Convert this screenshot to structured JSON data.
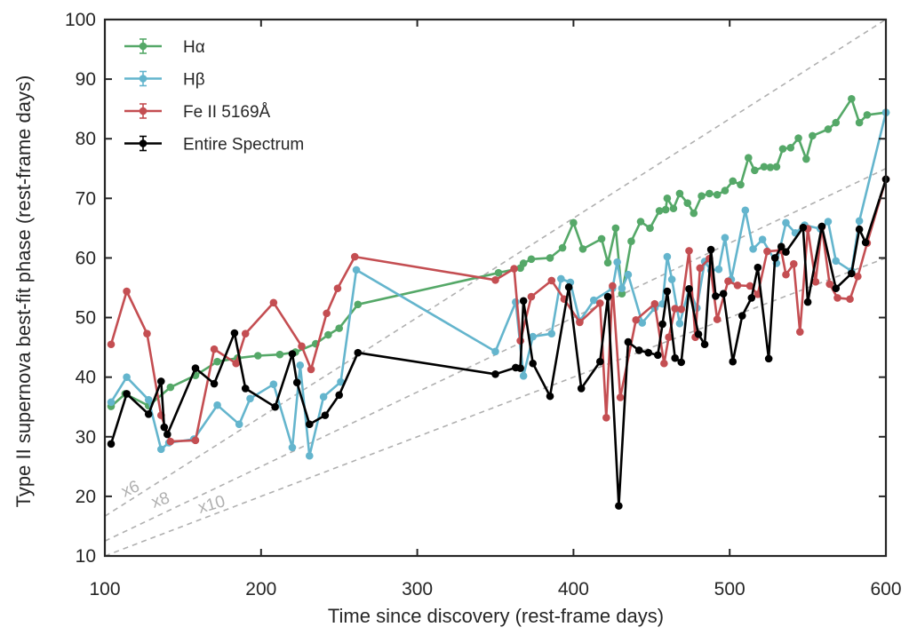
{
  "chart_data": {
    "type": "line",
    "xlabel": "Time since discovery (rest-frame days)",
    "ylabel": "Type II supernova best-fit phase (rest-frame days)",
    "xlim": [
      100,
      600
    ],
    "ylim": [
      10,
      100
    ],
    "xticks": [
      100,
      200,
      300,
      400,
      500,
      600
    ],
    "yticks": [
      10,
      20,
      30,
      40,
      50,
      60,
      70,
      80,
      90,
      100
    ],
    "grid": false,
    "legend_position": "top-left",
    "guide_lines": [
      {
        "label": "x6",
        "slope": 0.1667,
        "intercept": 0,
        "color": "#b0b0b0",
        "style": "dashed"
      },
      {
        "label": "x8",
        "slope": 0.125,
        "intercept": 0,
        "color": "#b0b0b0",
        "style": "dashed"
      },
      {
        "label": "x10",
        "slope": 0.1,
        "intercept": 0,
        "color": "#b0b0b0",
        "style": "dashed"
      }
    ],
    "series": [
      {
        "name": "Hα",
        "color": "#55a868",
        "points": [
          [
            104,
            35.1
          ],
          [
            113,
            37.2
          ],
          [
            128,
            35.2
          ],
          [
            142,
            38.3
          ],
          [
            158,
            40.3
          ],
          [
            172,
            42.6
          ],
          [
            185,
            43.2
          ],
          [
            198,
            43.6
          ],
          [
            212,
            43.8
          ],
          [
            222,
            44.2
          ],
          [
            235,
            45.6
          ],
          [
            243,
            47.1
          ],
          [
            250,
            48.2
          ],
          [
            262,
            52.2
          ],
          [
            352,
            57.5
          ],
          [
            366,
            58.3
          ],
          [
            368,
            59.1
          ],
          [
            373,
            59.8
          ],
          [
            385,
            60.0
          ],
          [
            393,
            61.7
          ],
          [
            400,
            65.9
          ],
          [
            406,
            61.5
          ],
          [
            418,
            63.2
          ],
          [
            422,
            59.2
          ],
          [
            427,
            65.0
          ],
          [
            431,
            54.0
          ],
          [
            437,
            62.8
          ],
          [
            443,
            66.1
          ],
          [
            449,
            65.0
          ],
          [
            455,
            67.9
          ],
          [
            459,
            68.1
          ],
          [
            460,
            70.0
          ],
          [
            464,
            68.3
          ],
          [
            468,
            70.8
          ],
          [
            473,
            69.2
          ],
          [
            477,
            67.5
          ],
          [
            482,
            70.4
          ],
          [
            487,
            70.8
          ],
          [
            492,
            70.6
          ],
          [
            497,
            71.3
          ],
          [
            502,
            72.9
          ],
          [
            507,
            72.3
          ],
          [
            512,
            76.8
          ],
          [
            516,
            74.7
          ],
          [
            522,
            75.3
          ],
          [
            526,
            75.2
          ],
          [
            530,
            75.3
          ],
          [
            534,
            78.3
          ],
          [
            539,
            78.5
          ],
          [
            544,
            80.1
          ],
          [
            549,
            76.6
          ],
          [
            553,
            80.5
          ],
          [
            563,
            81.6
          ],
          [
            568,
            82.7
          ],
          [
            578,
            86.7
          ],
          [
            583,
            82.7
          ],
          [
            588,
            84.0
          ],
          [
            600,
            84.4
          ]
        ]
      },
      {
        "name": "Hβ",
        "color": "#64b5cd",
        "points": [
          [
            104,
            35.8
          ],
          [
            114,
            40.0
          ],
          [
            128,
            36.2
          ],
          [
            136,
            27.9
          ],
          [
            141,
            29.0
          ],
          [
            157,
            29.6
          ],
          [
            172,
            35.3
          ],
          [
            186,
            32.1
          ],
          [
            193,
            36.4
          ],
          [
            208,
            38.8
          ],
          [
            220,
            28.2
          ],
          [
            225,
            42.0
          ],
          [
            231,
            26.8
          ],
          [
            240,
            36.7
          ],
          [
            251,
            39.2
          ],
          [
            261,
            58.0
          ],
          [
            350,
            44.3
          ],
          [
            363,
            52.6
          ],
          [
            368,
            40.2
          ],
          [
            374,
            46.8
          ],
          [
            386,
            47.3
          ],
          [
            392,
            56.5
          ],
          [
            398,
            55.9
          ],
          [
            404,
            49.4
          ],
          [
            413,
            52.9
          ],
          [
            425,
            54.9
          ],
          [
            428,
            59.3
          ],
          [
            431,
            54.9
          ],
          [
            435,
            57.2
          ],
          [
            444,
            49.1
          ],
          [
            452,
            51.6
          ],
          [
            457,
            52.3
          ],
          [
            460,
            60.2
          ],
          [
            463,
            56.4
          ],
          [
            468,
            49.0
          ],
          [
            474,
            54.8
          ],
          [
            479,
            51.6
          ],
          [
            484,
            59.4
          ],
          [
            488,
            57.9
          ],
          [
            493,
            58.1
          ],
          [
            497,
            63.4
          ],
          [
            501,
            56.4
          ],
          [
            510,
            68.0
          ],
          [
            515,
            61.5
          ],
          [
            521,
            63.1
          ],
          [
            530,
            59.1
          ],
          [
            536,
            65.9
          ],
          [
            542,
            64.2
          ],
          [
            548,
            65.5
          ],
          [
            558,
            64.9
          ],
          [
            563,
            66.1
          ],
          [
            568,
            59.5
          ],
          [
            578,
            57.8
          ],
          [
            583,
            66.2
          ],
          [
            600,
            84.4
          ]
        ]
      },
      {
        "name": "Fe II 5169Å",
        "color": "#c44e52",
        "points": [
          [
            104,
            45.5
          ],
          [
            114,
            54.4
          ],
          [
            127,
            47.3
          ],
          [
            136,
            33.6
          ],
          [
            142,
            29.2
          ],
          [
            158,
            29.4
          ],
          [
            170,
            44.7
          ],
          [
            184,
            42.3
          ],
          [
            190,
            47.3
          ],
          [
            208,
            52.5
          ],
          [
            226,
            45.2
          ],
          [
            232,
            41.3
          ],
          [
            242,
            50.7
          ],
          [
            249,
            54.9
          ],
          [
            260,
            60.2
          ],
          [
            350,
            56.3
          ],
          [
            362,
            58.2
          ],
          [
            366,
            46.1
          ],
          [
            373,
            53.5
          ],
          [
            386,
            56.2
          ],
          [
            394,
            53.1
          ],
          [
            404,
            49.2
          ],
          [
            417,
            52.4
          ],
          [
            421,
            33.2
          ],
          [
            425,
            55.3
          ],
          [
            430,
            36.6
          ],
          [
            440,
            49.6
          ],
          [
            452,
            52.3
          ],
          [
            458,
            42.3
          ],
          [
            461,
            46.7
          ],
          [
            465,
            51.5
          ],
          [
            469,
            51.4
          ],
          [
            474,
            61.2
          ],
          [
            478,
            46.7
          ],
          [
            481,
            58.3
          ],
          [
            487,
            59.9
          ],
          [
            492,
            49.7
          ],
          [
            499,
            56.1
          ],
          [
            505,
            55.4
          ],
          [
            513,
            55.3
          ],
          [
            518,
            53.9
          ],
          [
            524,
            61.1
          ],
          [
            533,
            61.3
          ],
          [
            536,
            57.2
          ],
          [
            541,
            59.0
          ],
          [
            545,
            47.6
          ],
          [
            550,
            64.9
          ],
          [
            555,
            56.0
          ],
          [
            559,
            65.2
          ],
          [
            564,
            55.6
          ],
          [
            569,
            53.3
          ],
          [
            577,
            53.1
          ],
          [
            582,
            56.9
          ],
          [
            588,
            62.5
          ],
          [
            600,
            73.2
          ]
        ]
      },
      {
        "name": "Entire Spectrum",
        "color": "#000000",
        "points": [
          [
            104,
            28.8
          ],
          [
            114,
            37.2
          ],
          [
            128,
            33.8
          ],
          [
            136,
            39.3
          ],
          [
            138,
            31.6
          ],
          [
            140,
            30.4
          ],
          [
            158,
            41.5
          ],
          [
            170,
            38.9
          ],
          [
            183,
            47.4
          ],
          [
            190,
            38.1
          ],
          [
            209,
            35.0
          ],
          [
            220,
            43.9
          ],
          [
            223,
            39.1
          ],
          [
            231,
            32.1
          ],
          [
            241,
            33.6
          ],
          [
            250,
            37.0
          ],
          [
            262,
            44.1
          ],
          [
            350,
            40.5
          ],
          [
            363,
            41.6
          ],
          [
            366,
            41.5
          ],
          [
            368,
            52.8
          ],
          [
            374,
            42.3
          ],
          [
            385,
            36.8
          ],
          [
            397,
            55.1
          ],
          [
            405,
            38.1
          ],
          [
            417,
            42.6
          ],
          [
            422,
            53.5
          ],
          [
            429,
            18.4
          ],
          [
            435,
            45.9
          ],
          [
            442,
            44.5
          ],
          [
            448,
            44.1
          ],
          [
            454,
            43.7
          ],
          [
            457,
            48.9
          ],
          [
            460,
            54.4
          ],
          [
            465,
            43.2
          ],
          [
            469,
            42.5
          ],
          [
            474,
            54.8
          ],
          [
            480,
            47.2
          ],
          [
            484,
            45.5
          ],
          [
            488,
            61.4
          ],
          [
            491,
            53.6
          ],
          [
            496,
            54.0
          ],
          [
            502,
            42.6
          ],
          [
            508,
            50.3
          ],
          [
            514,
            53.3
          ],
          [
            518,
            58.4
          ],
          [
            525,
            43.1
          ],
          [
            529,
            60.0
          ],
          [
            533,
            61.9
          ],
          [
            536,
            61.0
          ],
          [
            547,
            65.1
          ],
          [
            550,
            52.6
          ],
          [
            559,
            65.3
          ],
          [
            568,
            54.9
          ],
          [
            578,
            57.4
          ],
          [
            583,
            64.8
          ],
          [
            587,
            62.6
          ],
          [
            600,
            73.2
          ]
        ]
      }
    ]
  }
}
